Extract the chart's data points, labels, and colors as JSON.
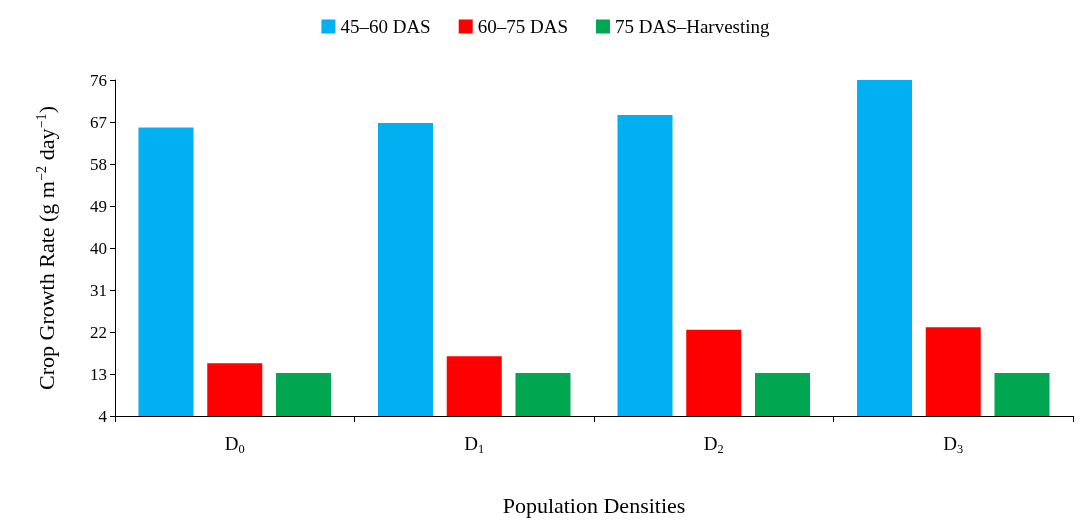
{
  "chart_data": {
    "type": "bar",
    "xlabel": "Population Densities",
    "ylabel": "Crop Growth Rate (g m$^{−2}$ day$^{−1}$)",
    "categories": [
      "D$_{0}$",
      "D$_{1}$",
      "D$_{2}$",
      "D$_{3}$"
    ],
    "series": [
      {
        "name": "45–60 DAS",
        "color": "#00b0f0",
        "values": [
          65.8,
          66.8,
          68.5,
          76
        ]
      },
      {
        "name": "60–75 DAS",
        "color": "#ff0000",
        "values": [
          15.3,
          16.8,
          22.5,
          23
        ]
      },
      {
        "name": "75 DAS–Harvesting",
        "color": "#00a650",
        "values": [
          13.2,
          13.2,
          13.2,
          13.2
        ]
      }
    ],
    "ylim": [
      4,
      76
    ],
    "yticks": [
      4,
      13,
      22,
      31,
      40,
      49,
      58,
      67,
      76
    ],
    "grid": false,
    "legend": "top"
  }
}
